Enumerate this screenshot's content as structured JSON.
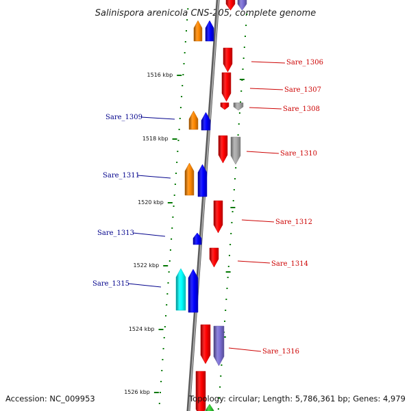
{
  "title": "Salinispora arenicola CNS-205, complete genome",
  "accession_text": "Accession: NC_009953",
  "summary_text": "Topology: circular; Length: 5,786,361 bp; Genes: 4,979",
  "kbp_ticks": [
    "1516 kbp",
    "1518 kbp",
    "1520 kbp",
    "1522 kbp",
    "1524 kbp",
    "1526 kbp"
  ],
  "genes": [
    {
      "id": "g_top_orange",
      "label": "",
      "color": "#ff8800",
      "strand": "+"
    },
    {
      "id": "g_top_blue",
      "label": "",
      "color": "#0000ff",
      "strand": "+"
    },
    {
      "id": "g_top_red",
      "label": "",
      "color": "#ff0000",
      "strand": "-"
    },
    {
      "id": "g_top_lav",
      "label": "",
      "color": "#7b6fd6",
      "strand": "-"
    },
    {
      "id": "g_1306",
      "label": "Sare_1306",
      "color": "#ff0000",
      "strand": "-"
    },
    {
      "id": "g_1307",
      "label": "Sare_1307",
      "color": "#ff0000",
      "strand": "-"
    },
    {
      "id": "g_1308a",
      "label": "Sare_1308",
      "color": "#ff0000",
      "strand": "-"
    },
    {
      "id": "g_1308b",
      "label": "",
      "color": "#aaaaaa",
      "strand": "-"
    },
    {
      "id": "g_1309a",
      "label": "Sare_1309",
      "color": "#ff8800",
      "strand": "+"
    },
    {
      "id": "g_1309b",
      "label": "",
      "color": "#0000ff",
      "strand": "+"
    },
    {
      "id": "g_1310a",
      "label": "Sare_1310",
      "color": "#ff0000",
      "strand": "-"
    },
    {
      "id": "g_1310b",
      "label": "",
      "color": "#aaaaaa",
      "strand": "-"
    },
    {
      "id": "g_1311a",
      "label": "Sare_1311",
      "color": "#ff8800",
      "strand": "+"
    },
    {
      "id": "g_1311b",
      "label": "",
      "color": "#0000ff",
      "strand": "+"
    },
    {
      "id": "g_1312",
      "label": "Sare_1312",
      "color": "#ff0000",
      "strand": "-"
    },
    {
      "id": "g_1313",
      "label": "Sare_1313",
      "color": "#0000ff",
      "strand": "+"
    },
    {
      "id": "g_1314",
      "label": "Sare_1314",
      "color": "#ff0000",
      "strand": "-"
    },
    {
      "id": "g_1315a",
      "label": "Sare_1315",
      "color": "#00ffff",
      "strand": "+"
    },
    {
      "id": "g_1315b",
      "label": "",
      "color": "#0000ff",
      "strand": "+"
    },
    {
      "id": "g_1316a",
      "label": "Sare_1316",
      "color": "#ff0000",
      "strand": "-"
    },
    {
      "id": "g_1316b",
      "label": "",
      "color": "#7b6fd6",
      "strand": "-"
    },
    {
      "id": "g_bot_red",
      "label": "",
      "color": "#ff0000",
      "strand": "-"
    },
    {
      "id": "g_bot_green",
      "label": "",
      "color": "#33cc33",
      "strand": "+"
    }
  ],
  "colors": {
    "forward_label": "#00008b",
    "reverse_label": "#cc0000",
    "backbone": "#888888",
    "tick_mark": "#007700"
  }
}
